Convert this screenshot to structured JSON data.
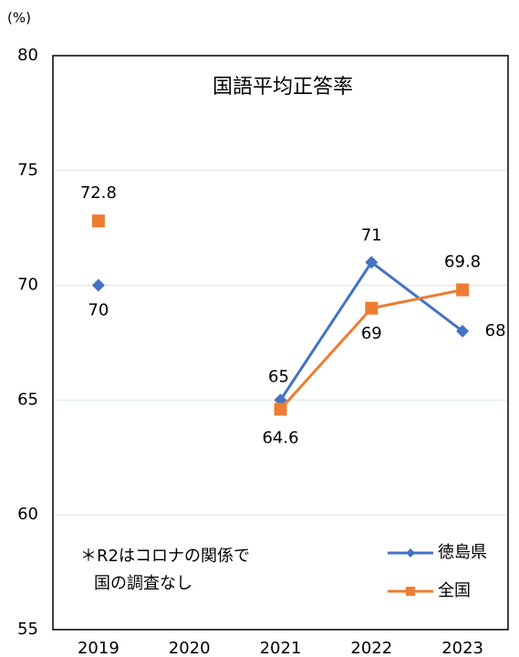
{
  "chart_data": {
    "type": "line",
    "title": "国語平均正答率",
    "y_unit": "(%)",
    "categories": [
      "2019",
      "2020",
      "2021",
      "2022",
      "2023"
    ],
    "series": [
      {
        "name": "徳島県",
        "color": "#4472c4",
        "marker": "diamond",
        "values": [
          70,
          null,
          65,
          71,
          68
        ]
      },
      {
        "name": "全国",
        "color": "#ed7d31",
        "marker": "square",
        "values": [
          72.8,
          null,
          64.6,
          69,
          69.8
        ]
      }
    ],
    "ylim": [
      55,
      80
    ],
    "yticks": [
      55,
      60,
      65,
      70,
      75,
      80
    ],
    "grid": true,
    "annotation": [
      "＊R2はコロナの関係で",
      "国の調査なし"
    ],
    "legend": "lower right"
  }
}
